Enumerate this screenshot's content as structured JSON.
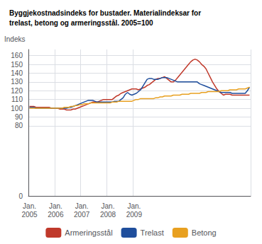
{
  "chart_data": {
    "type": "line",
    "title": "Byggjekostnadsindeks for bustader. Materialindeksar for\ntrelast, betong og armeringsstål. 2005=100",
    "y_label": "Indeks",
    "categories": [
      "Jan.\n2005",
      null,
      null,
      null,
      null,
      null,
      null,
      null,
      null,
      null,
      null,
      null,
      "Jan.\n2006",
      null,
      null,
      null,
      null,
      null,
      null,
      null,
      null,
      null,
      null,
      null,
      "Jan.\n2007",
      null,
      null,
      null,
      null,
      null,
      null,
      null,
      null,
      null,
      null,
      null,
      "Jan.\n2008",
      null,
      null,
      null,
      null,
      null,
      null,
      null,
      null,
      null,
      null,
      null,
      "Jan.\n2009",
      null,
      null,
      null,
      null,
      null,
      null,
      null,
      null,
      null,
      null,
      null,
      null,
      null,
      null,
      null,
      null,
      null,
      null,
      null,
      null,
      null,
      null,
      null,
      null,
      null,
      null,
      null,
      null,
      null,
      null,
      null,
      null,
      null,
      null,
      null,
      null,
      null,
      null,
      null,
      null,
      null,
      null,
      null,
      null,
      null,
      null,
      null,
      null,
      null,
      null,
      null,
      null,
      null
    ],
    "series": [
      {
        "name": "Armeringsstål",
        "color": "#c0392b",
        "values": [
          102,
          102,
          102,
          101,
          101,
          101,
          101,
          101,
          101,
          101,
          100,
          100,
          100,
          100,
          99,
          99,
          99,
          98,
          98,
          98,
          99,
          99,
          100,
          101,
          102,
          103,
          104,
          105,
          106,
          107,
          107,
          107,
          108,
          109,
          110,
          110,
          110,
          110,
          110,
          112,
          114,
          115,
          117,
          118,
          119,
          120,
          121,
          122,
          122,
          122,
          121,
          122,
          123,
          124,
          126,
          127,
          129,
          131,
          133,
          134,
          134,
          135,
          136,
          134,
          132,
          130,
          130,
          132,
          135,
          138,
          141,
          144,
          147,
          150,
          153,
          155,
          156,
          155,
          153,
          150,
          148,
          145,
          140,
          135,
          130,
          126,
          122,
          119,
          117,
          115,
          116,
          116,
          116,
          115,
          115,
          115,
          115,
          115,
          115,
          115,
          115,
          115
        ]
      },
      {
        "name": "Trelast",
        "color": "#1f4e9c",
        "values": [
          101,
          101,
          101,
          100,
          100,
          100,
          100,
          100,
          100,
          100,
          100,
          100,
          100,
          100,
          100,
          100,
          100,
          100,
          101,
          101,
          102,
          103,
          104,
          105,
          106,
          107,
          108,
          109,
          109,
          109,
          108,
          107,
          107,
          107,
          107,
          107,
          107,
          107,
          107,
          108,
          108,
          108,
          110,
          112,
          116,
          118,
          116,
          115,
          116,
          117,
          119,
          121,
          125,
          129,
          133,
          134,
          134,
          133,
          133,
          133,
          134,
          135,
          135,
          135,
          134,
          133,
          132,
          131,
          130,
          130,
          130,
          130,
          130,
          130,
          130,
          130,
          130,
          130,
          128,
          127,
          126,
          125,
          124,
          123,
          122,
          121,
          120,
          119,
          118,
          118,
          118,
          118,
          118,
          117,
          117,
          117,
          117,
          117,
          117,
          117,
          120,
          124
        ]
      },
      {
        "name": "Betong",
        "color": "#e8a020",
        "values": [
          100,
          100,
          100,
          100,
          100,
          100,
          100,
          100,
          100,
          100,
          100,
          100,
          100,
          100,
          100,
          100,
          101,
          101,
          101,
          102,
          102,
          103,
          103,
          104,
          104,
          105,
          105,
          105,
          106,
          106,
          106,
          106,
          106,
          106,
          106,
          106,
          106,
          106,
          107,
          107,
          107,
          108,
          108,
          108,
          108,
          108,
          108,
          108,
          109,
          110,
          110,
          111,
          111,
          111,
          111,
          111,
          111,
          111,
          112,
          112,
          113,
          113,
          114,
          114,
          114,
          114,
          115,
          115,
          115,
          115,
          116,
          116,
          116,
          116,
          117,
          117,
          117,
          117,
          117,
          118,
          118,
          118,
          119,
          119,
          119,
          119,
          119,
          119,
          120,
          120,
          120,
          120,
          121,
          121,
          121,
          121,
          122,
          122,
          122,
          122,
          123,
          124
        ]
      }
    ],
    "ylim": [
      0,
      167
    ],
    "yticks": [
      0,
      80,
      90,
      100,
      110,
      120,
      130,
      140,
      150,
      160
    ],
    "grid": true,
    "legend": "bottom"
  }
}
